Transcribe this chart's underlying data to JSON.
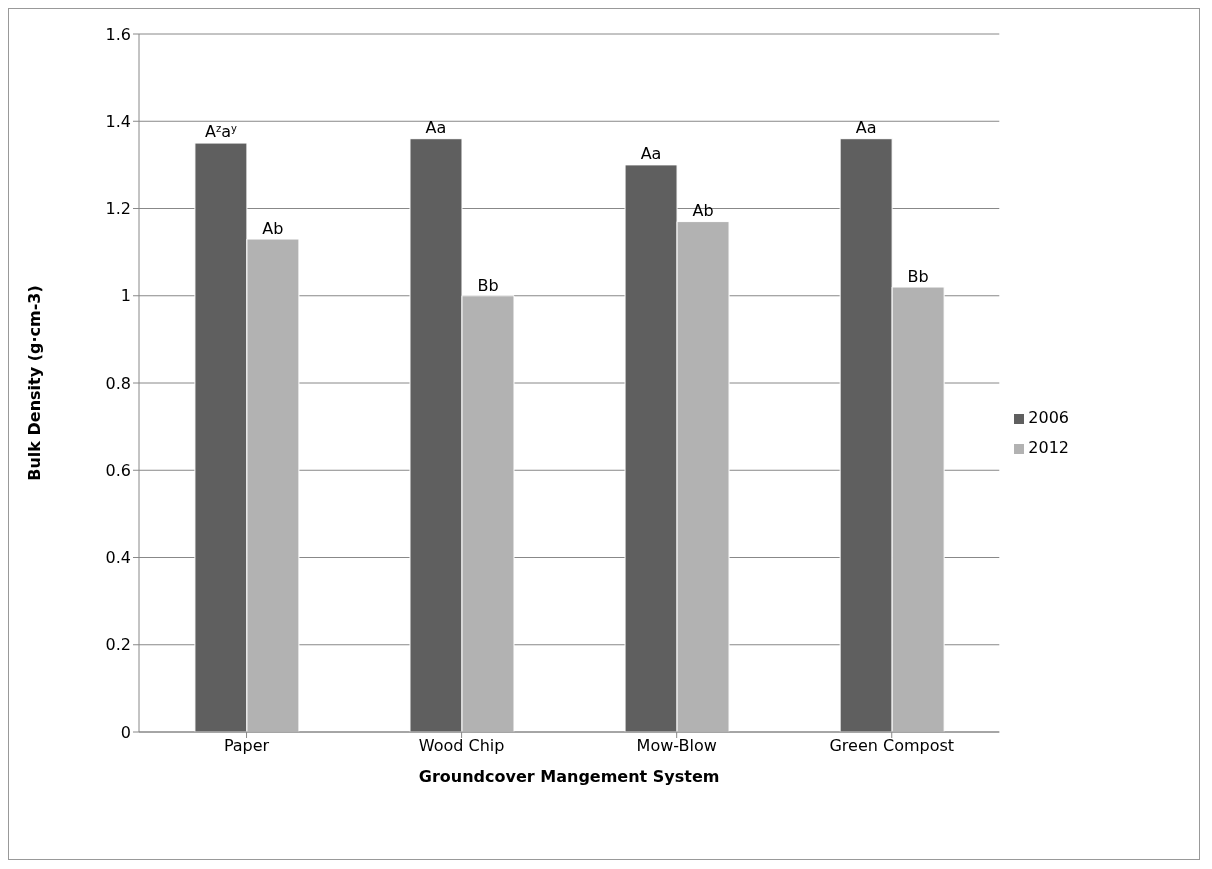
{
  "chart_data": {
    "type": "bar",
    "xlabel": "Groundcover Mangement System",
    "ylabel": "Bulk Density (g·cm-3)",
    "categories": [
      "Paper",
      "Wood Chip",
      "Mow-Blow",
      "Green Compost"
    ],
    "series": [
      {
        "name": "2006",
        "color": "#5f5f5f",
        "values": [
          1.35,
          1.36,
          1.3,
          1.36
        ]
      },
      {
        "name": "2012",
        "color": "#b2b2b2",
        "values": [
          1.13,
          1.0,
          1.17,
          1.02
        ]
      }
    ],
    "ylim": [
      0,
      1.6
    ],
    "yticks": [
      0,
      0.2,
      0.4,
      0.6,
      0.8,
      1,
      1.2,
      1.4,
      1.6
    ],
    "grid": "y",
    "legend": "right",
    "annotations": [
      {
        "text": "A$^{z}$a$^{y}$",
        "x": "Paper",
        "y": 1.35
      },
      {
        "text": "Ab",
        "x": "Paper",
        "y": 1.13
      },
      {
        "text": "Aa",
        "x": "Wood Chip",
        "y": 1.36
      },
      {
        "text": "Bb",
        "x": "Wood Chip",
        "y": 1.0
      },
      {
        "text": "Aa",
        "x": "Mow-Blow",
        "y": 1.3
      },
      {
        "text": "Ab",
        "x": "Mow-Blow",
        "y": 1.17
      },
      {
        "text": "Aa",
        "x": "Green Compost",
        "y": 1.36
      },
      {
        "text": "Bb",
        "x": "Green Compost",
        "y": 1.02
      }
    ]
  }
}
